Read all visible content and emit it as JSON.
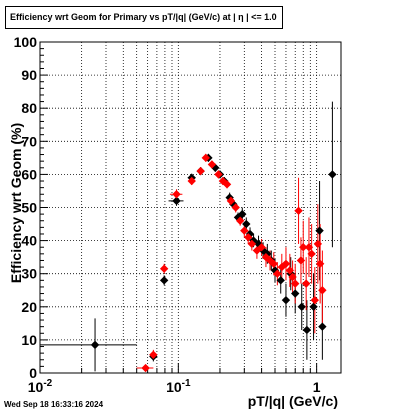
{
  "title": "Efficiency wrt Geom for Primary vs pT/|q| (GeV/c) at |  η  | <= 1.0",
  "timestamp": "Wed Sep 18 16:33:16 2024",
  "chart_data": {
    "type": "scatter",
    "title": "Efficiency wrt Geom for Primary vs pT/|q| (GeV/c) at |  η  | <= 1.0",
    "xlabel": "pT/|q| (GeV/c)",
    "ylabel": "Efficiency wrt Geom (%)",
    "xscale": "log",
    "xlim": [
      0.01,
      1.5
    ],
    "ylim": [
      0,
      100
    ],
    "grid": true,
    "x_tick_labels": [
      "10^-2",
      "10^-1",
      "1"
    ],
    "y_tick_labels": [
      "0",
      "10",
      "20",
      "30",
      "40",
      "50",
      "60",
      "70",
      "80",
      "90",
      "100"
    ],
    "series": [
      {
        "color": "#000000",
        "marker": "diamond",
        "points": [
          {
            "x": 0.025,
            "y": 8.5,
            "xerr": [
              0.015,
              0.025
            ],
            "yerr": 8
          },
          {
            "x": 0.066,
            "y": 5,
            "xerr": [
              0.003,
              0.003
            ],
            "yerr": 1.5
          },
          {
            "x": 0.079,
            "y": 28,
            "xerr": [
              0.002,
              0.002
            ],
            "yerr": 1.5
          },
          {
            "x": 0.097,
            "y": 52,
            "xerr": [
              0.012,
              0.012
            ],
            "yerr": 1.5
          },
          {
            "x": 0.125,
            "y": 59,
            "xerr": [
              0.008,
              0.008
            ],
            "yerr": 1.2
          },
          {
            "x": 0.145,
            "y": 61,
            "xerr": [
              0.006,
              0.006
            ],
            "yerr": 1.2
          },
          {
            "x": 0.165,
            "y": 65,
            "xerr": [
              0.005,
              0.005
            ],
            "yerr": 1.2
          },
          {
            "x": 0.185,
            "y": 62,
            "xerr": [
              0.005,
              0.005
            ],
            "yerr": 1.2
          },
          {
            "x": 0.2,
            "y": 60,
            "xerr": [
              0.005,
              0.005
            ],
            "yerr": 1.2
          },
          {
            "x": 0.215,
            "y": 58,
            "xerr": [
              0.005,
              0.005
            ],
            "yerr": 1.2
          },
          {
            "x": 0.235,
            "y": 53,
            "xerr": [
              0.005,
              0.005
            ],
            "yerr": 1.5
          },
          {
            "x": 0.25,
            "y": 51,
            "xerr": [
              0.005,
              0.005
            ],
            "yerr": 1.5
          },
          {
            "x": 0.27,
            "y": 47,
            "xerr": [
              0.005,
              0.005
            ],
            "yerr": 1.5
          },
          {
            "x": 0.29,
            "y": 48,
            "xerr": [
              0.006,
              0.006
            ],
            "yerr": 2
          },
          {
            "x": 0.31,
            "y": 45,
            "xerr": [
              0.006,
              0.006
            ],
            "yerr": 2
          },
          {
            "x": 0.33,
            "y": 42,
            "xerr": [
              0.006,
              0.006
            ],
            "yerr": 2
          },
          {
            "x": 0.35,
            "y": 40,
            "xerr": [
              0.007,
              0.007
            ],
            "yerr": 2
          },
          {
            "x": 0.38,
            "y": 39,
            "xerr": [
              0.007,
              0.007
            ],
            "yerr": 2.5
          },
          {
            "x": 0.41,
            "y": 37,
            "xerr": [
              0.008,
              0.008
            ],
            "yerr": 2.5
          },
          {
            "x": 0.44,
            "y": 36,
            "xerr": [
              0.008,
              0.008
            ],
            "yerr": 3
          },
          {
            "x": 0.47,
            "y": 34,
            "xerr": [
              0.009,
              0.009
            ],
            "yerr": 3
          },
          {
            "x": 0.5,
            "y": 31,
            "xerr": [
              0.009,
              0.009
            ],
            "yerr": 3.5
          },
          {
            "x": 0.55,
            "y": 28,
            "xerr": [
              0.01,
              0.01
            ],
            "yerr": 4
          },
          {
            "x": 0.6,
            "y": 22,
            "xerr": [
              0.01,
              0.01
            ],
            "yerr": 5
          },
          {
            "x": 0.65,
            "y": 30,
            "xerr": [
              0.01,
              0.01
            ],
            "yerr": 5
          },
          {
            "x": 0.7,
            "y": 24,
            "xerr": [
              0.01,
              0.01
            ],
            "yerr": 6
          },
          {
            "x": 0.78,
            "y": 20,
            "xerr": [
              0.01,
              0.01
            ],
            "yerr": 7
          },
          {
            "x": 0.85,
            "y": 13,
            "xerr": [
              0.01,
              0.01
            ],
            "yerr": 9
          },
          {
            "x": 0.95,
            "y": 20,
            "xerr": [
              0.01,
              0.01
            ],
            "yerr": 10
          },
          {
            "x": 1.05,
            "y": 43,
            "xerr": [
              0.01,
              0.01
            ],
            "yerr": 15
          },
          {
            "x": 1.1,
            "y": 14,
            "xerr": [
              0.01,
              0.01
            ],
            "yerr": 10
          },
          {
            "x": 1.3,
            "y": 60,
            "xerr": [
              0.02,
              0.02
            ],
            "yerr": 22
          }
        ]
      },
      {
        "color": "#ff0000",
        "marker": "diamond",
        "points": [
          {
            "x": 0.058,
            "y": 1.5,
            "xerr": [
              0.008,
              0.008
            ],
            "yerr": 1
          },
          {
            "x": 0.066,
            "y": 5.5,
            "xerr": [
              0.003,
              0.003
            ],
            "yerr": 1.5
          },
          {
            "x": 0.079,
            "y": 31.5,
            "xerr": [
              0.002,
              0.002
            ],
            "yerr": 1.5
          },
          {
            "x": 0.097,
            "y": 54,
            "xerr": [
              0.01,
              0.01
            ],
            "yerr": 1.5
          },
          {
            "x": 0.125,
            "y": 58,
            "xerr": [
              0.006,
              0.006
            ],
            "yerr": 1.2
          },
          {
            "x": 0.145,
            "y": 61,
            "xerr": [
              0.005,
              0.005
            ],
            "yerr": 1.2
          },
          {
            "x": 0.158,
            "y": 65,
            "xerr": [
              0.004,
              0.004
            ],
            "yerr": 1.2
          },
          {
            "x": 0.175,
            "y": 63,
            "xerr": [
              0.004,
              0.004
            ],
            "yerr": 1.2
          },
          {
            "x": 0.195,
            "y": 60,
            "xerr": [
              0.004,
              0.004
            ],
            "yerr": 1.2
          },
          {
            "x": 0.21,
            "y": 58,
            "xerr": [
              0.004,
              0.004
            ],
            "yerr": 1.2
          },
          {
            "x": 0.225,
            "y": 57,
            "xerr": [
              0.004,
              0.004
            ],
            "yerr": 1.2
          },
          {
            "x": 0.24,
            "y": 52,
            "xerr": [
              0.004,
              0.004
            ],
            "yerr": 1.5
          },
          {
            "x": 0.26,
            "y": 50,
            "xerr": [
              0.004,
              0.004
            ],
            "yerr": 1.5
          },
          {
            "x": 0.28,
            "y": 46,
            "xerr": [
              0.005,
              0.005
            ],
            "yerr": 1.5
          },
          {
            "x": 0.3,
            "y": 43,
            "xerr": [
              0.005,
              0.005
            ],
            "yerr": 2
          },
          {
            "x": 0.32,
            "y": 41,
            "xerr": [
              0.005,
              0.005
            ],
            "yerr": 2
          },
          {
            "x": 0.34,
            "y": 39,
            "xerr": [
              0.006,
              0.006
            ],
            "yerr": 2
          },
          {
            "x": 0.37,
            "y": 37,
            "xerr": [
              0.006,
              0.006
            ],
            "yerr": 2.5
          },
          {
            "x": 0.4,
            "y": 38,
            "xerr": [
              0.007,
              0.007
            ],
            "yerr": 2.5
          },
          {
            "x": 0.43,
            "y": 35,
            "xerr": [
              0.007,
              0.007
            ],
            "yerr": 3
          },
          {
            "x": 0.46,
            "y": 34,
            "xerr": [
              0.008,
              0.008
            ],
            "yerr": 3
          },
          {
            "x": 0.49,
            "y": 33,
            "xerr": [
              0.008,
              0.008
            ],
            "yerr": 3.5
          },
          {
            "x": 0.52,
            "y": 30,
            "xerr": [
              0.009,
              0.009
            ],
            "yerr": 3.5
          },
          {
            "x": 0.56,
            "y": 32,
            "xerr": [
              0.009,
              0.009
            ],
            "yerr": 4
          },
          {
            "x": 0.6,
            "y": 33,
            "xerr": [
              0.01,
              0.01
            ],
            "yerr": 5
          },
          {
            "x": 0.64,
            "y": 31,
            "xerr": [
              0.01,
              0.01
            ],
            "yerr": 5
          },
          {
            "x": 0.67,
            "y": 29,
            "xerr": [
              0.01,
              0.01
            ],
            "yerr": 5
          },
          {
            "x": 0.7,
            "y": 27,
            "xerr": [
              0.01,
              0.01
            ],
            "yerr": 6
          },
          {
            "x": 0.74,
            "y": 49,
            "xerr": [
              0.01,
              0.01
            ],
            "yerr": 10
          },
          {
            "x": 0.77,
            "y": 34,
            "xerr": [
              0.01,
              0.01
            ],
            "yerr": 7
          },
          {
            "x": 0.8,
            "y": 38,
            "xerr": [
              0.01,
              0.01
            ],
            "yerr": 8
          },
          {
            "x": 0.84,
            "y": 27,
            "xerr": [
              0.01,
              0.01
            ],
            "yerr": 8
          },
          {
            "x": 0.88,
            "y": 38,
            "xerr": [
              0.01,
              0.01
            ],
            "yerr": 9
          },
          {
            "x": 0.92,
            "y": 36,
            "xerr": [
              0.01,
              0.01
            ],
            "yerr": 9
          },
          {
            "x": 0.97,
            "y": 22,
            "xerr": [
              0.01,
              0.01
            ],
            "yerr": 10
          },
          {
            "x": 1.02,
            "y": 39,
            "xerr": [
              0.01,
              0.01
            ],
            "yerr": 12
          },
          {
            "x": 1.06,
            "y": 33,
            "xerr": [
              0.01,
              0.01
            ],
            "yerr": 12
          },
          {
            "x": 1.1,
            "y": 25,
            "xerr": [
              0.01,
              0.01
            ],
            "yerr": 12
          }
        ]
      }
    ]
  }
}
